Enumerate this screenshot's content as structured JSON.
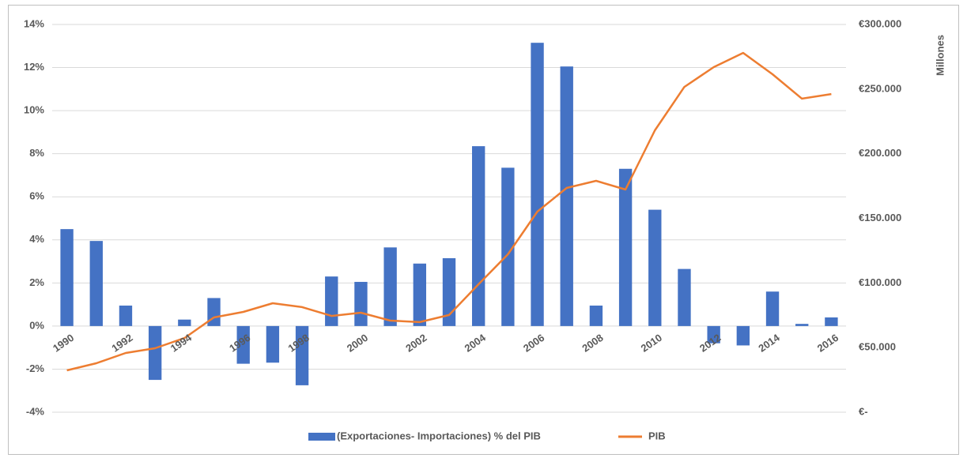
{
  "chart_data": {
    "type": "bar",
    "categories": [
      "1990",
      null,
      "1992",
      null,
      "1994",
      null,
      "1996",
      null,
      "1998",
      null,
      "2000",
      null,
      "2002",
      null,
      "2004",
      null,
      "2006",
      null,
      "2008",
      null,
      "2010",
      null,
      "2012",
      null,
      "2014",
      null,
      "2016"
    ],
    "series": [
      {
        "name": "(Exportaciones- Importaciones) % del PIB",
        "type": "bar",
        "color": "#4472c4",
        "values": [
          4.5,
          3.95,
          0.95,
          -2.5,
          0.3,
          1.3,
          -1.75,
          -1.7,
          -2.75,
          2.3,
          2.05,
          3.65,
          2.9,
          3.15,
          8.35,
          7.35,
          13.15,
          12.05,
          0.95,
          7.3,
          5.4,
          2.65,
          -0.8,
          -0.9,
          1.6,
          0.1,
          0.4
        ]
      },
      {
        "name": "PIB",
        "type": "line",
        "color": "#ed7d31",
        "axis": "y2",
        "values": [
          32400,
          37900,
          45800,
          49500,
          57400,
          73300,
          77600,
          84300,
          81300,
          74500,
          77000,
          70900,
          69700,
          75200,
          99000,
          122200,
          155200,
          173500,
          179000,
          172300,
          218100,
          251700,
          267000,
          278000,
          261500,
          242600,
          246200
        ]
      }
    ],
    "ylim": [
      -4,
      14
    ],
    "yticks": [
      {
        "value": -4,
        "label": "-4%"
      },
      {
        "value": -2,
        "label": "-2%"
      },
      {
        "value": 0,
        "label": "0%"
      },
      {
        "value": 2,
        "label": "2%"
      },
      {
        "value": 4,
        "label": "4%"
      },
      {
        "value": 6,
        "label": "6%"
      },
      {
        "value": 8,
        "label": "8%"
      },
      {
        "value": 10,
        "label": "10%"
      },
      {
        "value": 12,
        "label": "12%"
      },
      {
        "value": 14,
        "label": "14%"
      }
    ],
    "y2lim": [
      0,
      300000
    ],
    "y2ticks": [
      {
        "value": 0,
        "label": "€-"
      },
      {
        "value": 50000,
        "label": "€50.000"
      },
      {
        "value": 100000,
        "label": "€100.000"
      },
      {
        "value": 150000,
        "label": "€150.000"
      },
      {
        "value": 200000,
        "label": "€200.000"
      },
      {
        "value": 250000,
        "label": "€250.000"
      },
      {
        "value": 300000,
        "label": "€300.000"
      }
    ],
    "y2label": "Millones",
    "grid": true,
    "legend": "bottom"
  }
}
